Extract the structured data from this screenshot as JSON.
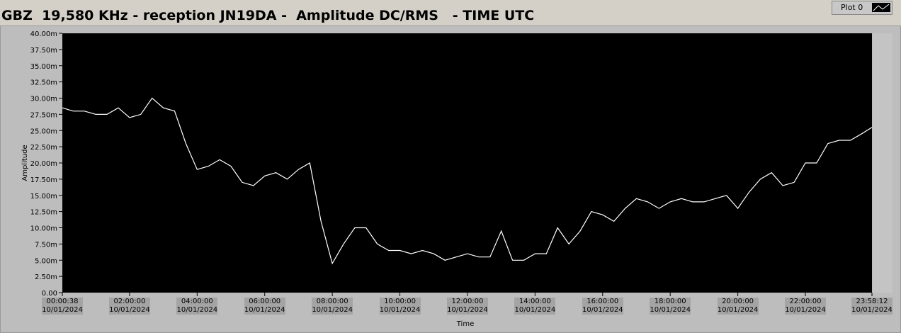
{
  "chart_data": {
    "type": "line",
    "title": "GBZ  19,580 KHz - reception JN19DA -  Amplitude DC/RMS   - TIME UTC",
    "xlabel": "Time",
    "ylabel": "Amplitude",
    "ylim": [
      0,
      0.04
    ],
    "yticks": [
      {
        "value": 0,
        "label": "0.00"
      },
      {
        "value": 0.0025,
        "label": "2.50m"
      },
      {
        "value": 0.005,
        "label": "5.00m"
      },
      {
        "value": 0.0075,
        "label": "7.50m"
      },
      {
        "value": 0.01,
        "label": "10.00m"
      },
      {
        "value": 0.0125,
        "label": "12.50m"
      },
      {
        "value": 0.015,
        "label": "15.00m"
      },
      {
        "value": 0.0175,
        "label": "17.50m"
      },
      {
        "value": 0.02,
        "label": "20.00m"
      },
      {
        "value": 0.0225,
        "label": "22.50m"
      },
      {
        "value": 0.025,
        "label": "25.00m"
      },
      {
        "value": 0.0275,
        "label": "27.50m"
      },
      {
        "value": 0.03,
        "label": "30.00m"
      },
      {
        "value": 0.0325,
        "label": "32.50m"
      },
      {
        "value": 0.035,
        "label": "35.00m"
      },
      {
        "value": 0.0375,
        "label": "37.50m"
      },
      {
        "value": 0.04,
        "label": "40.00m"
      }
    ],
    "xlim": [
      "2024-01-10T00:00:38",
      "2024-01-10T23:58:12"
    ],
    "xticks": [
      {
        "value": "2024-01-10T00:00:38",
        "label": "00:00:38\n10/01/2024"
      },
      {
        "value": "2024-01-10T02:00:00",
        "label": "02:00:00\n10/01/2024"
      },
      {
        "value": "2024-01-10T04:00:00",
        "label": "04:00:00\n10/01/2024"
      },
      {
        "value": "2024-01-10T06:00:00",
        "label": "06:00:00\n10/01/2024"
      },
      {
        "value": "2024-01-10T08:00:00",
        "label": "08:00:00\n10/01/2024"
      },
      {
        "value": "2024-01-10T10:00:00",
        "label": "10:00:00\n10/01/2024"
      },
      {
        "value": "2024-01-10T12:00:00",
        "label": "12:00:00\n10/01/2024"
      },
      {
        "value": "2024-01-10T14:00:00",
        "label": "14:00:00\n10/01/2024"
      },
      {
        "value": "2024-01-10T16:00:00",
        "label": "16:00:00\n10/01/2024"
      },
      {
        "value": "2024-01-10T18:00:00",
        "label": "18:00:00\n10/01/2024"
      },
      {
        "value": "2024-01-10T20:00:00",
        "label": "20:00:00\n10/01/2024"
      },
      {
        "value": "2024-01-10T22:00:00",
        "label": "22:00:00\n10/01/2024"
      },
      {
        "value": "2024-01-10T23:58:12",
        "label": "23:58:12\n10/01/2024"
      }
    ],
    "x": [
      "2024-01-10T00:00:38",
      "2024-01-10T00:20:00",
      "2024-01-10T00:40:00",
      "2024-01-10T01:00:00",
      "2024-01-10T01:20:00",
      "2024-01-10T01:40:00",
      "2024-01-10T02:00:00",
      "2024-01-10T02:20:00",
      "2024-01-10T02:40:00",
      "2024-01-10T03:00:00",
      "2024-01-10T03:20:00",
      "2024-01-10T03:40:00",
      "2024-01-10T04:00:00",
      "2024-01-10T04:20:00",
      "2024-01-10T04:40:00",
      "2024-01-10T05:00:00",
      "2024-01-10T05:20:00",
      "2024-01-10T05:40:00",
      "2024-01-10T06:00:00",
      "2024-01-10T06:20:00",
      "2024-01-10T06:40:00",
      "2024-01-10T07:00:00",
      "2024-01-10T07:20:00",
      "2024-01-10T07:40:00",
      "2024-01-10T08:00:00",
      "2024-01-10T08:20:00",
      "2024-01-10T08:40:00",
      "2024-01-10T09:00:00",
      "2024-01-10T09:20:00",
      "2024-01-10T09:40:00",
      "2024-01-10T10:00:00",
      "2024-01-10T10:20:00",
      "2024-01-10T10:40:00",
      "2024-01-10T11:00:00",
      "2024-01-10T11:20:00",
      "2024-01-10T11:40:00",
      "2024-01-10T12:00:00",
      "2024-01-10T12:20:00",
      "2024-01-10T12:40:00",
      "2024-01-10T13:00:00",
      "2024-01-10T13:20:00",
      "2024-01-10T13:40:00",
      "2024-01-10T14:00:00",
      "2024-01-10T14:20:00",
      "2024-01-10T14:40:00",
      "2024-01-10T15:00:00",
      "2024-01-10T15:20:00",
      "2024-01-10T15:40:00",
      "2024-01-10T16:00:00",
      "2024-01-10T16:20:00",
      "2024-01-10T16:40:00",
      "2024-01-10T17:00:00",
      "2024-01-10T17:20:00",
      "2024-01-10T17:40:00",
      "2024-01-10T18:00:00",
      "2024-01-10T18:20:00",
      "2024-01-10T18:40:00",
      "2024-01-10T19:00:00",
      "2024-01-10T19:20:00",
      "2024-01-10T19:40:00",
      "2024-01-10T20:00:00",
      "2024-01-10T20:20:00",
      "2024-01-10T20:40:00",
      "2024-01-10T21:00:00",
      "2024-01-10T21:20:00",
      "2024-01-10T21:40:00",
      "2024-01-10T22:00:00",
      "2024-01-10T22:20:00",
      "2024-01-10T22:40:00",
      "2024-01-10T23:00:00",
      "2024-01-10T23:20:00",
      "2024-01-10T23:40:00",
      "2024-01-10T23:58:12"
    ],
    "series": [
      {
        "name": "Plot 0",
        "color": "#ffffff",
        "values": [
          0.0285,
          0.028,
          0.028,
          0.0275,
          0.0275,
          0.0285,
          0.027,
          0.0275,
          0.03,
          0.0285,
          0.028,
          0.023,
          0.019,
          0.0195,
          0.0205,
          0.0195,
          0.017,
          0.0165,
          0.018,
          0.0185,
          0.0175,
          0.019,
          0.02,
          0.011,
          0.0045,
          0.0075,
          0.01,
          0.01,
          0.0075,
          0.0065,
          0.0065,
          0.006,
          0.0065,
          0.006,
          0.005,
          0.0055,
          0.006,
          0.0055,
          0.0055,
          0.0095,
          0.005,
          0.005,
          0.006,
          0.006,
          0.01,
          0.0075,
          0.0095,
          0.0125,
          0.012,
          0.011,
          0.013,
          0.0145,
          0.014,
          0.013,
          0.014,
          0.0145,
          0.014,
          0.014,
          0.0145,
          0.015,
          0.013,
          0.0155,
          0.0175,
          0.0185,
          0.0165,
          0.017,
          0.02,
          0.02,
          0.023,
          0.0235,
          0.0235,
          0.0245,
          0.0255
        ]
      }
    ]
  }
}
